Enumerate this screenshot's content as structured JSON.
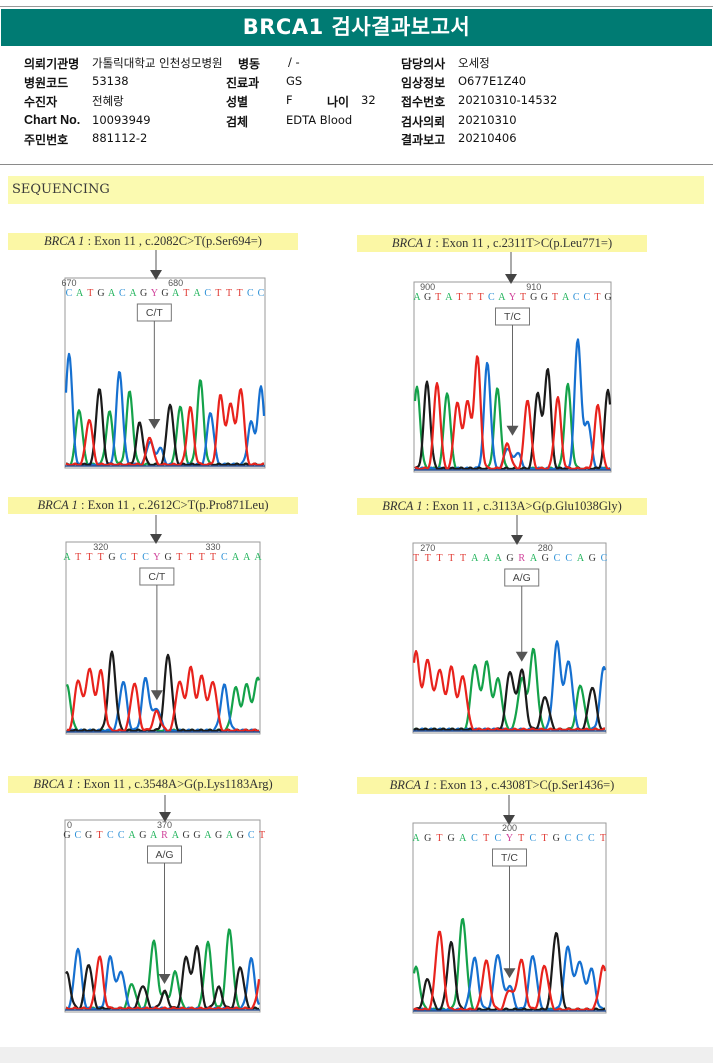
{
  "report": {
    "title": "BRCA1 검사결과보고서",
    "section_title": "SEQUENCING"
  },
  "patient_info": {
    "left": [
      {
        "label": "의뢰기관명",
        "value": "가톨릭대학교 인천성모병원"
      },
      {
        "label": "병원코드",
        "value": "53138"
      },
      {
        "label": "수진자",
        "value": "전혜랑"
      },
      {
        "label": "Chart No.",
        "value": "10093949"
      },
      {
        "label": "주민번호",
        "value": "881112-2"
      }
    ],
    "middle": [
      {
        "label": "병동",
        "value": "/ -"
      },
      {
        "label": "진료과",
        "value": "GS"
      },
      {
        "label": "성별",
        "value": "F"
      },
      {
        "label": "검체",
        "value": "EDTA Blood"
      }
    ],
    "age": {
      "label": "나이",
      "value": "32"
    },
    "right": [
      {
        "label": "담당의사",
        "value": "오세정"
      },
      {
        "label": "임상정보",
        "value": "O677E1Z40"
      },
      {
        "label": "접수번호",
        "value": "20210310-14532"
      },
      {
        "label": "검사의뢰",
        "value": "20210310"
      },
      {
        "label": "결과보고",
        "value": "20210406"
      }
    ]
  },
  "base_colors": {
    "A": "#1fb35a",
    "C": "#2a8fd6",
    "G": "#333333",
    "T": "#e03a33",
    "Y": "#d0409a",
    "R": "#d0409a"
  },
  "trace_colors": {
    "A": "#14a24a",
    "C": "#1670d0",
    "G": "#1b1b1b",
    "T": "#e8231d"
  },
  "variants": [
    {
      "gene": "BRCA 1",
      "exon": "Exon 11",
      "change": "c.2082C>T(p.Ser694=)",
      "call": "C/T",
      "sequence": "CATGACAGYGATACTTTCC",
      "ticks": [
        {
          "label": "670",
          "index": 0
        },
        {
          "label": "680",
          "index": 10
        }
      ],
      "het_index": 8,
      "peaks": [
        {
          "b": "C",
          "h": 0.8
        },
        {
          "b": "A",
          "h": 0.4
        },
        {
          "b": "T",
          "h": 0.33
        },
        {
          "b": "G",
          "h": 0.55
        },
        {
          "b": "A",
          "h": 0.38
        },
        {
          "b": "C",
          "h": 0.67
        },
        {
          "b": "A",
          "h": 0.52
        },
        {
          "b": "G",
          "h": 0.3
        },
        {
          "b": "T",
          "h": 0.2
        },
        {
          "b": "C",
          "h": 0.12
        },
        {
          "b": "G",
          "h": 0.44
        },
        {
          "b": "A",
          "h": 0.42
        },
        {
          "b": "T",
          "h": 0.41
        },
        {
          "b": "A",
          "h": 0.6
        },
        {
          "b": "C",
          "h": 0.38
        },
        {
          "b": "T",
          "h": 0.5
        },
        {
          "b": "T",
          "h": 0.44
        },
        {
          "b": "T",
          "h": 0.55
        },
        {
          "b": "C",
          "h": 0.3
        },
        {
          "b": "C",
          "h": 0.55
        }
      ]
    },
    {
      "gene": "BRCA 1",
      "exon": "Exon 11",
      "change": "c.2311T>C(p.Leu771=)",
      "call": "T/C",
      "sequence": "AGTATTTCAYTGGTACCTG",
      "ticks": [
        {
          "label": "900",
          "index": 1
        },
        {
          "label": "910",
          "index": 11
        }
      ],
      "het_index": 9,
      "peaks": [
        {
          "b": "A",
          "h": 0.58
        },
        {
          "b": "G",
          "h": 0.62
        },
        {
          "b": "T",
          "h": 0.62
        },
        {
          "b": "A",
          "h": 0.55
        },
        {
          "b": "T",
          "h": 0.48
        },
        {
          "b": "T",
          "h": 0.48
        },
        {
          "b": "T",
          "h": 0.8
        },
        {
          "b": "C",
          "h": 0.76
        },
        {
          "b": "A",
          "h": 0.57
        },
        {
          "b": "T",
          "h": 0.18
        },
        {
          "b": "C",
          "h": 0.12
        },
        {
          "b": "T",
          "h": 0.5
        },
        {
          "b": "G",
          "h": 0.55
        },
        {
          "b": "G",
          "h": 0.72
        },
        {
          "b": "T",
          "h": 0.51
        },
        {
          "b": "A",
          "h": 0.6
        },
        {
          "b": "C",
          "h": 0.93
        },
        {
          "b": "C",
          "h": 0.34
        },
        {
          "b": "T",
          "h": 0.46
        },
        {
          "b": "G",
          "h": 0.57
        }
      ]
    },
    {
      "gene": "BRCA 1",
      "exon": "Exon 11",
      "change": "c.2612C>T(p.Pro871Leu)",
      "call": "C/T",
      "sequence": "ATTTGCTCYGTTTTCAAA",
      "ticks": [
        {
          "label": "320",
          "index": 3
        },
        {
          "label": "330",
          "index": 13
        }
      ],
      "het_index": 8,
      "peaks": [
        {
          "b": "A",
          "h": 0.32
        },
        {
          "b": "T",
          "h": 0.36
        },
        {
          "b": "T",
          "h": 0.44
        },
        {
          "b": "T",
          "h": 0.42
        },
        {
          "b": "G",
          "h": 0.55
        },
        {
          "b": "C",
          "h": 0.35
        },
        {
          "b": "T",
          "h": 0.34
        },
        {
          "b": "C",
          "h": 0.37
        },
        {
          "b": "C",
          "h": 0.16
        },
        {
          "b": "G",
          "h": 0.54
        },
        {
          "b": "T",
          "h": 0.35
        },
        {
          "b": "T",
          "h": 0.44
        },
        {
          "b": "T",
          "h": 0.38
        },
        {
          "b": "T",
          "h": 0.35
        },
        {
          "b": "C",
          "h": 0.32
        },
        {
          "b": "A",
          "h": 0.3
        },
        {
          "b": "A",
          "h": 0.32
        },
        {
          "b": "A",
          "h": 0.38
        }
      ]
    },
    {
      "gene": "BRCA 1",
      "exon": "Exon 11",
      "change": "c.3113A>G(p.Glu1038Gly)",
      "call": "A/G",
      "sequence": "TTTTTAAAGRAGCCAGC",
      "ticks": [
        {
          "label": "270",
          "index": 1
        },
        {
          "label": "280",
          "index": 11
        }
      ],
      "het_index": 9,
      "peaks": [
        {
          "b": "T",
          "h": 0.55
        },
        {
          "b": "T",
          "h": 0.5
        },
        {
          "b": "T",
          "h": 0.43
        },
        {
          "b": "T",
          "h": 0.44
        },
        {
          "b": "T",
          "h": 0.38
        },
        {
          "b": "A",
          "h": 0.47
        },
        {
          "b": "A",
          "h": 0.48
        },
        {
          "b": "A",
          "h": 0.36
        },
        {
          "b": "G",
          "h": 0.42
        },
        {
          "b": "G",
          "h": 0.43
        },
        {
          "b": "A",
          "h": 0.57
        },
        {
          "b": "G",
          "h": 0.24
        },
        {
          "b": "C",
          "h": 0.62
        },
        {
          "b": "C",
          "h": 0.49
        },
        {
          "b": "A",
          "h": 0.32
        },
        {
          "b": "G",
          "h": 0.31
        },
        {
          "b": "C",
          "h": 0.45
        }
      ]
    },
    {
      "gene": "BRCA 1",
      "exon": "Exon 11",
      "change": "c.3548A>G(p.Lys1183Arg)",
      "call": "A/G",
      "sequence": "GCGTCCAGARAGGAGAGCT",
      "ticks": [
        {
          "label": "0",
          "index": -1
        },
        {
          "label": "370",
          "index": 9
        }
      ],
      "het_index": 9,
      "peaks": [
        {
          "b": "G",
          "h": 0.25
        },
        {
          "b": "C",
          "h": 0.43
        },
        {
          "b": "G",
          "h": 0.32
        },
        {
          "b": "T",
          "h": 0.37
        },
        {
          "b": "C",
          "h": 0.37
        },
        {
          "b": "C",
          "h": 0.27
        },
        {
          "b": "A",
          "h": 0.18
        },
        {
          "b": "G",
          "h": 0.17
        },
        {
          "b": "A",
          "h": 0.48
        },
        {
          "b": "G",
          "h": 0.12
        },
        {
          "b": "A",
          "h": 0.26
        },
        {
          "b": "G",
          "h": 0.37
        },
        {
          "b": "G",
          "h": 0.45
        },
        {
          "b": "A",
          "h": 0.47
        },
        {
          "b": "G",
          "h": 0.15
        },
        {
          "b": "A",
          "h": 0.56
        },
        {
          "b": "G",
          "h": 0.3
        },
        {
          "b": "C",
          "h": 0.35
        },
        {
          "b": "T",
          "h": 0.32
        }
      ]
    },
    {
      "gene": "BRCA 1",
      "exon": "Exon 13",
      "change": "c.4308T>C(p.Ser1436=)",
      "call": "T/C",
      "sequence": "AGTGACTCYTCTGCCCT",
      "ticks": [
        {
          "label": "200",
          "index": 8
        }
      ],
      "het_index": 8,
      "peaks": [
        {
          "b": "A",
          "h": 0.3
        },
        {
          "b": "G",
          "h": 0.22
        },
        {
          "b": "T",
          "h": 0.57
        },
        {
          "b": "G",
          "h": 0.48
        },
        {
          "b": "A",
          "h": 0.65
        },
        {
          "b": "C",
          "h": 0.37
        },
        {
          "b": "T",
          "h": 0.35
        },
        {
          "b": "C",
          "h": 0.4
        },
        {
          "b": "C",
          "h": 0.17
        },
        {
          "b": "T",
          "h": 0.36
        },
        {
          "b": "C",
          "h": 0.39
        },
        {
          "b": "T",
          "h": 0.32
        },
        {
          "b": "G",
          "h": 0.56
        },
        {
          "b": "C",
          "h": 0.45
        },
        {
          "b": "C",
          "h": 0.35
        },
        {
          "b": "C",
          "h": 0.29
        },
        {
          "b": "T",
          "h": 0.31
        }
      ]
    }
  ]
}
